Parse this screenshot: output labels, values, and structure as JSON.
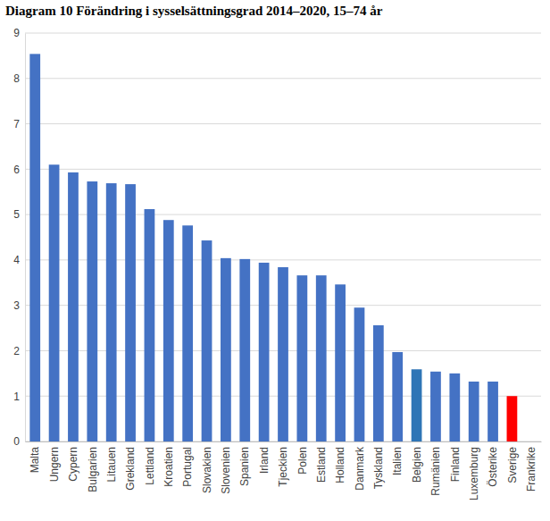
{
  "chart_data": {
    "type": "bar",
    "title": "Diagram 10 Förändring i sysselsättningsgrad 2014–2020, 15–74 år",
    "categories": [
      "Malta",
      "Ungern",
      "Cypern",
      "Bulgarien",
      "Litauen",
      "Grekland",
      "Lettland",
      "Kroatien",
      "Portugal",
      "Slovakien",
      "Slovenien",
      "Spanien",
      "Irland",
      "Tjeckien",
      "Polen",
      "Estland",
      "Holland",
      "Danmark",
      "Tyskland",
      "Italien",
      "Belgien",
      "Rumänien",
      "Finland",
      "Luxemburg",
      "Österike",
      "Sverige",
      "Frankrike"
    ],
    "values": [
      8.54,
      6.1,
      5.93,
      5.73,
      5.69,
      5.67,
      5.12,
      4.88,
      4.76,
      4.43,
      4.04,
      4.02,
      3.94,
      3.84,
      3.66,
      3.66,
      3.46,
      2.95,
      2.56,
      1.97,
      1.59,
      1.54,
      1.5,
      1.32,
      1.32,
      1.0,
      0
    ],
    "colors": [
      "#4472c4",
      "#4472c4",
      "#4472c4",
      "#4472c4",
      "#4472c4",
      "#4472c4",
      "#4472c4",
      "#4472c4",
      "#4472c4",
      "#4472c4",
      "#4472c4",
      "#4472c4",
      "#4472c4",
      "#4472c4",
      "#4472c4",
      "#4472c4",
      "#4472c4",
      "#4472c4",
      "#4472c4",
      "#4472c4",
      "#2e75b6",
      "#4472c4",
      "#4472c4",
      "#4472c4",
      "#4472c4",
      "#ff0000",
      "#4472c4"
    ],
    "ylim": [
      0,
      9
    ],
    "yticks": [
      0,
      1,
      2,
      3,
      4,
      5,
      6,
      7,
      8,
      9
    ],
    "grid": true
  }
}
